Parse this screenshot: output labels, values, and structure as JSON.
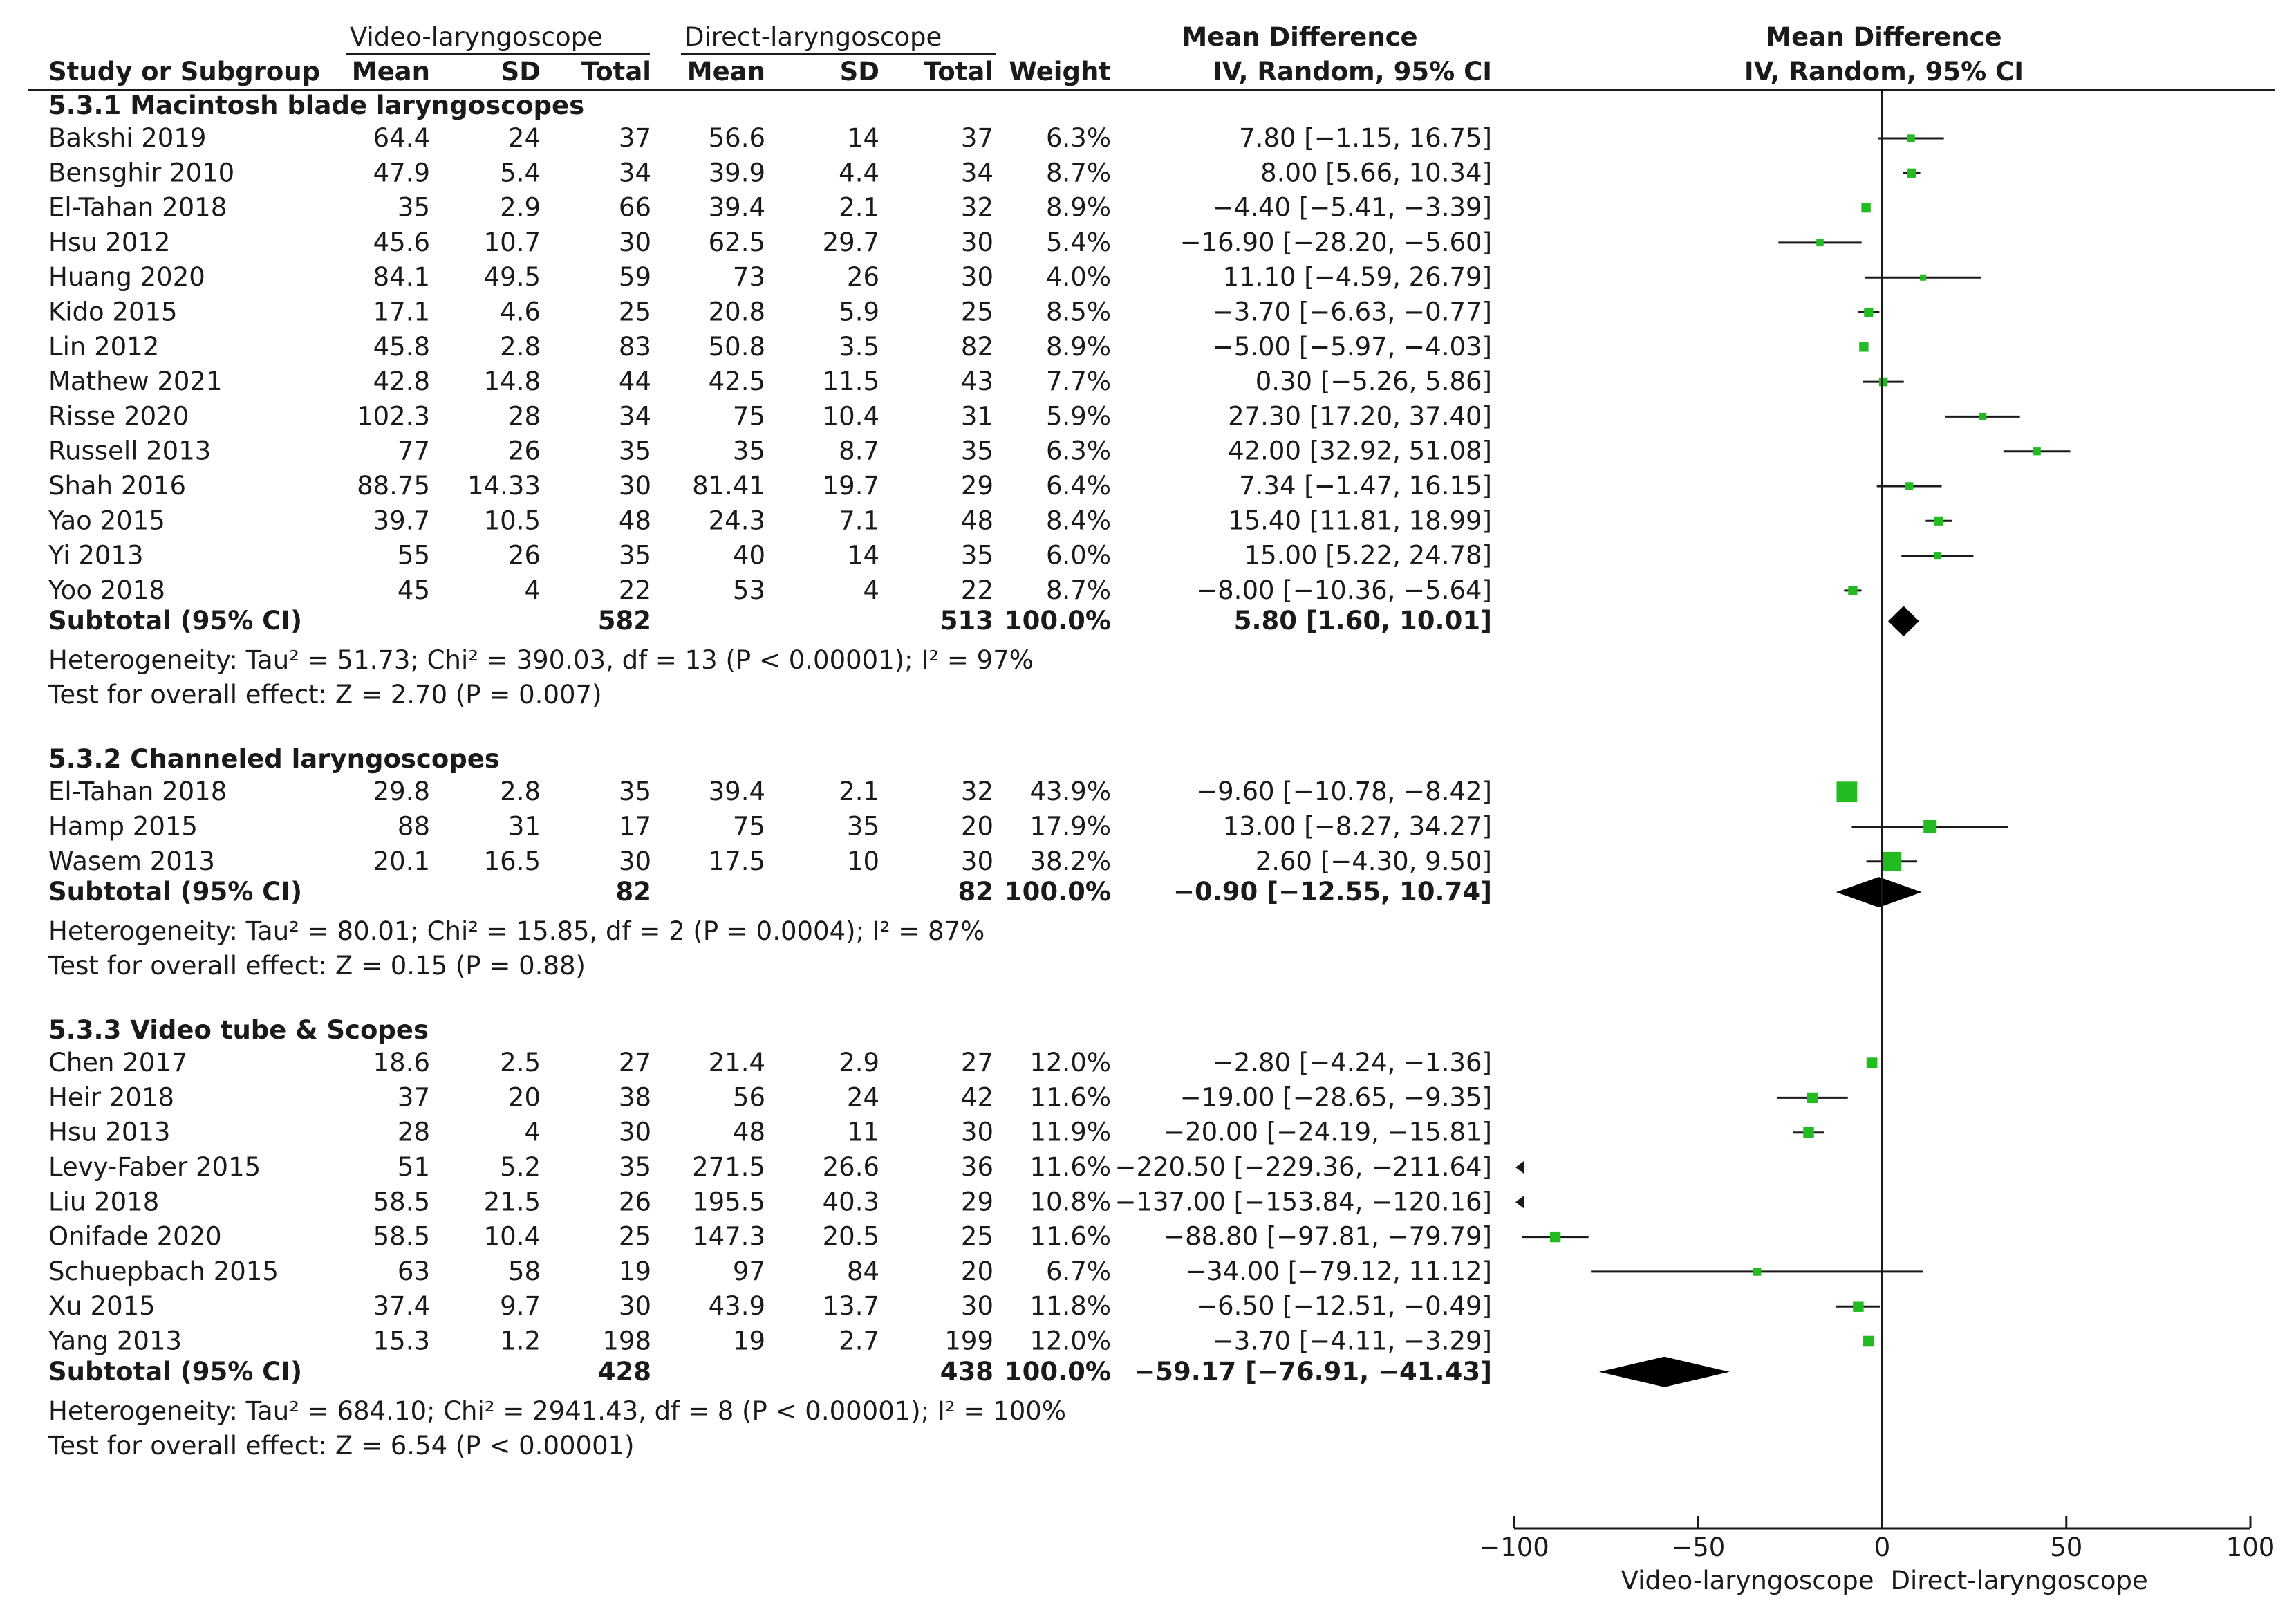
{
  "header": {
    "group_video": "Video-laryngoscope",
    "group_direct": "Direct-laryngoscope",
    "col_study": "Study or Subgroup",
    "col_mean": "Mean",
    "col_sd": "SD",
    "col_total": "Total",
    "col_weight": "Weight",
    "md_title": "Mean Difference",
    "md_method": "IV, Random, 95% CI",
    "plot_title": "Mean Difference",
    "plot_method": "IV, Random, 95% CI"
  },
  "subgroups": [
    {
      "title": "5.3.1 Macintosh blade laryngoscopes",
      "studies": [
        {
          "name": "Bakshi 2019",
          "v_mean": "64.4",
          "v_sd": "24",
          "v_total": "37",
          "d_mean": "56.6",
          "d_sd": "14",
          "d_total": "37",
          "weight": "6.3%",
          "ci": "7.80 [−1.15, 16.75]",
          "md": 7.8,
          "lo": -1.15,
          "hi": 16.75,
          "w": 6.3
        },
        {
          "name": "Bensghir 2010",
          "v_mean": "47.9",
          "v_sd": "5.4",
          "v_total": "34",
          "d_mean": "39.9",
          "d_sd": "4.4",
          "d_total": "34",
          "weight": "8.7%",
          "ci": "8.00 [5.66, 10.34]",
          "md": 8.0,
          "lo": 5.66,
          "hi": 10.34,
          "w": 8.7
        },
        {
          "name": "El-Tahan 2018",
          "v_mean": "35",
          "v_sd": "2.9",
          "v_total": "66",
          "d_mean": "39.4",
          "d_sd": "2.1",
          "d_total": "32",
          "weight": "8.9%",
          "ci": "−4.40 [−5.41, −3.39]",
          "md": -4.4,
          "lo": -5.41,
          "hi": -3.39,
          "w": 8.9
        },
        {
          "name": "Hsu 2012",
          "v_mean": "45.6",
          "v_sd": "10.7",
          "v_total": "30",
          "d_mean": "62.5",
          "d_sd": "29.7",
          "d_total": "30",
          "weight": "5.4%",
          "ci": "−16.90 [−28.20, −5.60]",
          "md": -16.9,
          "lo": -28.2,
          "hi": -5.6,
          "w": 5.4
        },
        {
          "name": "Huang 2020",
          "v_mean": "84.1",
          "v_sd": "49.5",
          "v_total": "59",
          "d_mean": "73",
          "d_sd": "26",
          "d_total": "30",
          "weight": "4.0%",
          "ci": "11.10 [−4.59, 26.79]",
          "md": 11.1,
          "lo": -4.59,
          "hi": 26.79,
          "w": 4.0
        },
        {
          "name": "Kido 2015",
          "v_mean": "17.1",
          "v_sd": "4.6",
          "v_total": "25",
          "d_mean": "20.8",
          "d_sd": "5.9",
          "d_total": "25",
          "weight": "8.5%",
          "ci": "−3.70 [−6.63, −0.77]",
          "md": -3.7,
          "lo": -6.63,
          "hi": -0.77,
          "w": 8.5
        },
        {
          "name": "Lin 2012",
          "v_mean": "45.8",
          "v_sd": "2.8",
          "v_total": "83",
          "d_mean": "50.8",
          "d_sd": "3.5",
          "d_total": "82",
          "weight": "8.9%",
          "ci": "−5.00 [−5.97, −4.03]",
          "md": -5.0,
          "lo": -5.97,
          "hi": -4.03,
          "w": 8.9
        },
        {
          "name": "Mathew 2021",
          "v_mean": "42.8",
          "v_sd": "14.8",
          "v_total": "44",
          "d_mean": "42.5",
          "d_sd": "11.5",
          "d_total": "43",
          "weight": "7.7%",
          "ci": "0.30 [−5.26, 5.86]",
          "md": 0.3,
          "lo": -5.26,
          "hi": 5.86,
          "w": 7.7
        },
        {
          "name": "Risse 2020",
          "v_mean": "102.3",
          "v_sd": "28",
          "v_total": "34",
          "d_mean": "75",
          "d_sd": "10.4",
          "d_total": "31",
          "weight": "5.9%",
          "ci": "27.30 [17.20, 37.40]",
          "md": 27.3,
          "lo": 17.2,
          "hi": 37.4,
          "w": 5.9
        },
        {
          "name": "Russell 2013",
          "v_mean": "77",
          "v_sd": "26",
          "v_total": "35",
          "d_mean": "35",
          "d_sd": "8.7",
          "d_total": "35",
          "weight": "6.3%",
          "ci": "42.00 [32.92, 51.08]",
          "md": 42.0,
          "lo": 32.92,
          "hi": 51.08,
          "w": 6.3
        },
        {
          "name": "Shah 2016",
          "v_mean": "88.75",
          "v_sd": "14.33",
          "v_total": "30",
          "d_mean": "81.41",
          "d_sd": "19.7",
          "d_total": "29",
          "weight": "6.4%",
          "ci": "7.34 [−1.47, 16.15]",
          "md": 7.34,
          "lo": -1.47,
          "hi": 16.15,
          "w": 6.4
        },
        {
          "name": "Yao 2015",
          "v_mean": "39.7",
          "v_sd": "10.5",
          "v_total": "48",
          "d_mean": "24.3",
          "d_sd": "7.1",
          "d_total": "48",
          "weight": "8.4%",
          "ci": "15.40 [11.81, 18.99]",
          "md": 15.4,
          "lo": 11.81,
          "hi": 18.99,
          "w": 8.4
        },
        {
          "name": "Yi 2013",
          "v_mean": "55",
          "v_sd": "26",
          "v_total": "35",
          "d_mean": "40",
          "d_sd": "14",
          "d_total": "35",
          "weight": "6.0%",
          "ci": "15.00 [5.22, 24.78]",
          "md": 15.0,
          "lo": 5.22,
          "hi": 24.78,
          "w": 6.0
        },
        {
          "name": "Yoo 2018",
          "v_mean": "45",
          "v_sd": "4",
          "v_total": "22",
          "d_mean": "53",
          "d_sd": "4",
          "d_total": "22",
          "weight": "8.7%",
          "ci": "−8.00 [−10.36, −5.64]",
          "md": -8.0,
          "lo": -10.36,
          "hi": -5.64,
          "w": 8.7
        }
      ],
      "subtotal": {
        "label": "Subtotal (95% CI)",
        "v_total": "582",
        "d_total": "513",
        "weight": "100.0%",
        "ci": "5.80 [1.60, 10.01]",
        "md": 5.8,
        "lo": 1.6,
        "hi": 10.01
      },
      "heterogeneity": "Heterogeneity: Tau² = 51.73; Chi² = 390.03, df = 13 (P < 0.00001); I² = 97%",
      "overall": "Test for overall effect: Z = 2.70 (P = 0.007)"
    },
    {
      "title": "5.3.2 Channeled laryngoscopes",
      "studies": [
        {
          "name": "El-Tahan 2018",
          "v_mean": "29.8",
          "v_sd": "2.8",
          "v_total": "35",
          "d_mean": "39.4",
          "d_sd": "2.1",
          "d_total": "32",
          "weight": "43.9%",
          "ci": "−9.60 [−10.78, −8.42]",
          "md": -9.6,
          "lo": -10.78,
          "hi": -8.42,
          "w": 43.9
        },
        {
          "name": "Hamp 2015",
          "v_mean": "88",
          "v_sd": "31",
          "v_total": "17",
          "d_mean": "75",
          "d_sd": "35",
          "d_total": "20",
          "weight": "17.9%",
          "ci": "13.00 [−8.27, 34.27]",
          "md": 13.0,
          "lo": -8.27,
          "hi": 34.27,
          "w": 17.9
        },
        {
          "name": "Wasem 2013",
          "v_mean": "20.1",
          "v_sd": "16.5",
          "v_total": "30",
          "d_mean": "17.5",
          "d_sd": "10",
          "d_total": "30",
          "weight": "38.2%",
          "ci": "2.60 [−4.30, 9.50]",
          "md": 2.6,
          "lo": -4.3,
          "hi": 9.5,
          "w": 38.2
        }
      ],
      "subtotal": {
        "label": "Subtotal (95% CI)",
        "v_total": "82",
        "d_total": "82",
        "weight": "100.0%",
        "ci": "−0.90 [−12.55, 10.74]",
        "md": -0.9,
        "lo": -12.55,
        "hi": 10.74
      },
      "heterogeneity": "Heterogeneity: Tau² = 80.01; Chi² = 15.85, df = 2 (P = 0.0004); I² = 87%",
      "overall": "Test for overall effect: Z = 0.15 (P = 0.88)"
    },
    {
      "title": "5.3.3 Video tube & Scopes",
      "studies": [
        {
          "name": "Chen 2017",
          "v_mean": "18.6",
          "v_sd": "2.5",
          "v_total": "27",
          "d_mean": "21.4",
          "d_sd": "2.9",
          "d_total": "27",
          "weight": "12.0%",
          "ci": "−2.80 [−4.24, −1.36]",
          "md": -2.8,
          "lo": -4.24,
          "hi": -1.36,
          "w": 12.0
        },
        {
          "name": "Heir 2018",
          "v_mean": "37",
          "v_sd": "20",
          "v_total": "38",
          "d_mean": "56",
          "d_sd": "24",
          "d_total": "42",
          "weight": "11.6%",
          "ci": "−19.00 [−28.65, −9.35]",
          "md": -19.0,
          "lo": -28.65,
          "hi": -9.35,
          "w": 11.6
        },
        {
          "name": "Hsu 2013",
          "v_mean": "28",
          "v_sd": "4",
          "v_total": "30",
          "d_mean": "48",
          "d_sd": "11",
          "d_total": "30",
          "weight": "11.9%",
          "ci": "−20.00 [−24.19, −15.81]",
          "md": -20.0,
          "lo": -24.19,
          "hi": -15.81,
          "w": 11.9
        },
        {
          "name": "Levy-Faber 2015",
          "v_mean": "51",
          "v_sd": "5.2",
          "v_total": "35",
          "d_mean": "271.5",
          "d_sd": "26.6",
          "d_total": "36",
          "weight": "11.6%",
          "ci": "−220.50 [−229.36, −211.64]",
          "md": -220.5,
          "lo": -229.36,
          "hi": -211.64,
          "w": 11.6
        },
        {
          "name": "Liu 2018",
          "v_mean": "58.5",
          "v_sd": "21.5",
          "v_total": "26",
          "d_mean": "195.5",
          "d_sd": "40.3",
          "d_total": "29",
          "weight": "10.8%",
          "ci": "−137.00 [−153.84, −120.16]",
          "md": -137.0,
          "lo": -153.84,
          "hi": -120.16,
          "w": 10.8
        },
        {
          "name": "Onifade 2020",
          "v_mean": "58.5",
          "v_sd": "10.4",
          "v_total": "25",
          "d_mean": "147.3",
          "d_sd": "20.5",
          "d_total": "25",
          "weight": "11.6%",
          "ci": "−88.80 [−97.81, −79.79]",
          "md": -88.8,
          "lo": -97.81,
          "hi": -79.79,
          "w": 11.6
        },
        {
          "name": "Schuepbach 2015",
          "v_mean": "63",
          "v_sd": "58",
          "v_total": "19",
          "d_mean": "97",
          "d_sd": "84",
          "d_total": "20",
          "weight": "6.7%",
          "ci": "−34.00 [−79.12, 11.12]",
          "md": -34.0,
          "lo": -79.12,
          "hi": 11.12,
          "w": 6.7
        },
        {
          "name": "Xu 2015",
          "v_mean": "37.4",
          "v_sd": "9.7",
          "v_total": "30",
          "d_mean": "43.9",
          "d_sd": "13.7",
          "d_total": "30",
          "weight": "11.8%",
          "ci": "−6.50 [−12.51, −0.49]",
          "md": -6.5,
          "lo": -12.51,
          "hi": -0.49,
          "w": 11.8
        },
        {
          "name": "Yang 2013",
          "v_mean": "15.3",
          "v_sd": "1.2",
          "v_total": "198",
          "d_mean": "19",
          "d_sd": "2.7",
          "d_total": "199",
          "weight": "12.0%",
          "ci": "−3.70 [−4.11, −3.29]",
          "md": -3.7,
          "lo": -4.11,
          "hi": -3.29,
          "w": 12.0
        }
      ],
      "subtotal": {
        "label": "Subtotal (95% CI)",
        "v_total": "428",
        "d_total": "438",
        "weight": "100.0%",
        "ci": "−59.17 [−76.91, −41.43]",
        "md": -59.17,
        "lo": -76.91,
        "hi": -41.43
      },
      "heterogeneity": "Heterogeneity: Tau² = 684.10; Chi² = 2941.43, df = 8 (P < 0.00001); I² = 100%",
      "overall": "Test for overall effect: Z = 6.54 (P < 0.00001)"
    }
  ],
  "chart_data": {
    "type": "forest",
    "xlim": [
      -100,
      100
    ],
    "ticks": [
      -100,
      -50,
      0,
      50,
      100
    ],
    "tick_labels": [
      "−100",
      "−50",
      "0",
      "50",
      "100"
    ],
    "favours_left": "Video-laryngoscope",
    "favours_right": "Direct-laryngoscope",
    "study_marker_color": "#22bb22",
    "summary_marker_color": "#000000",
    "line_color": "#1a1a1a"
  }
}
